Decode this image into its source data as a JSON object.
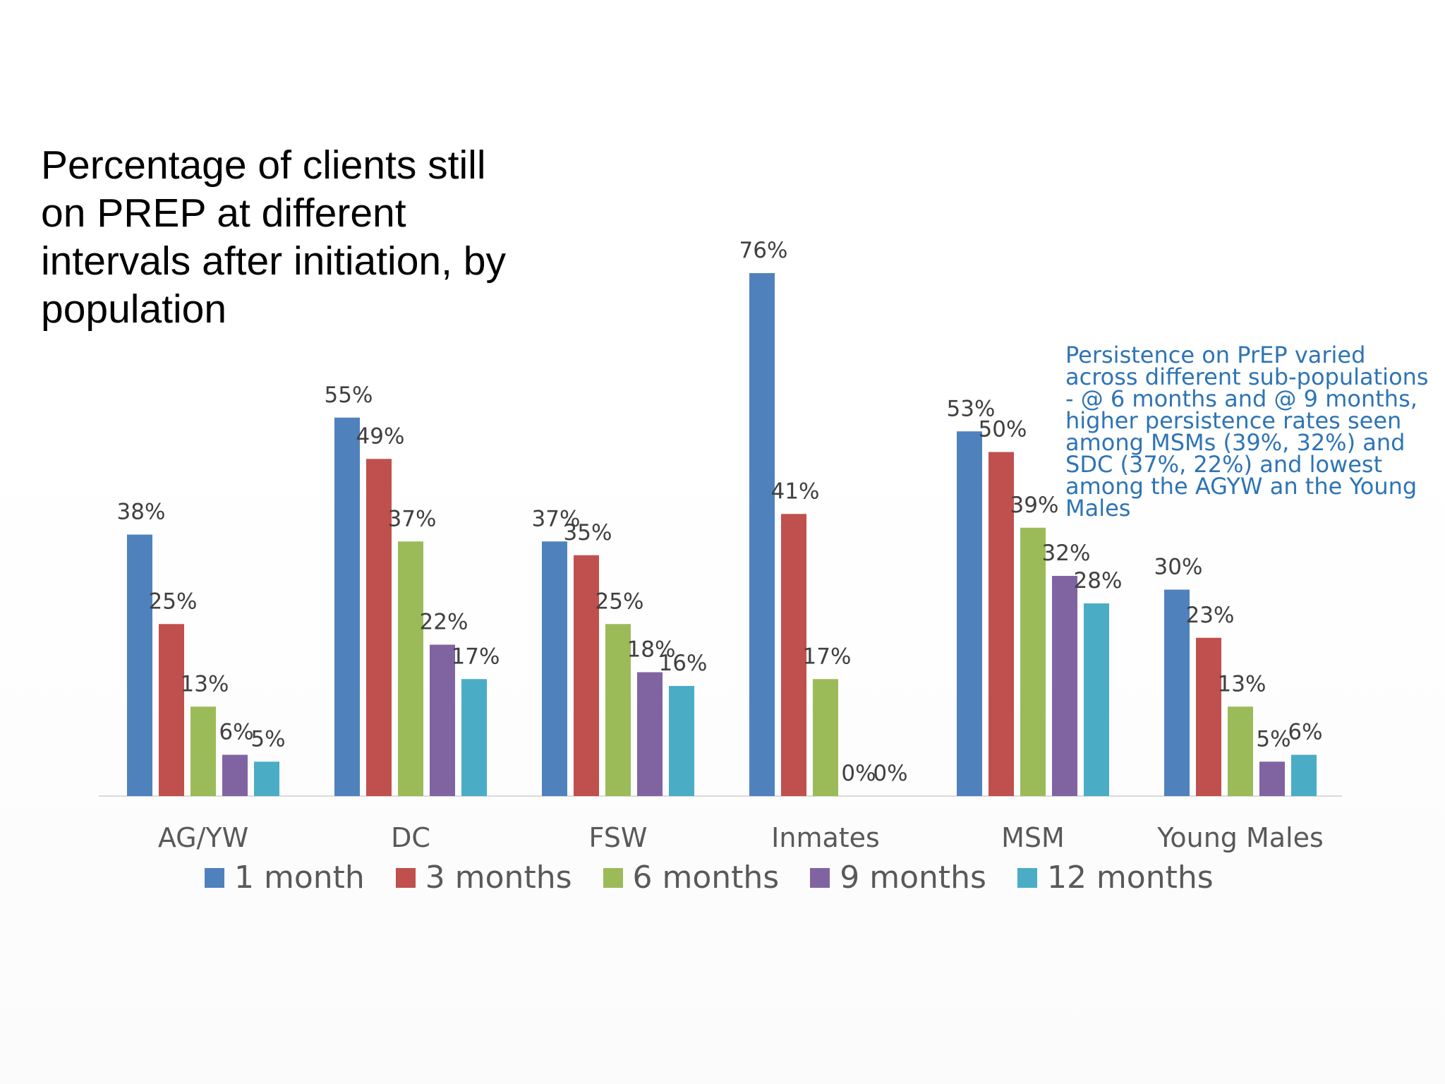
{
  "title": "Percentage of clients still on PREP at different intervals after initiation, by population",
  "note": "Persistence on PrEP varied across different sub-populations - @ 6 months and @ 9 months, higher persistence rates seen among MSMs (39%, 32%) and SDC (37%, 22%) and lowest among the AGYW an the Young Males",
  "colors": {
    "1 month": "#4f81bd",
    "3 months": "#c0504d",
    "6 months": "#9bbb59",
    "9 months": "#8064a2",
    "12 months": "#4bacc6",
    "axis": "#d9d9d9",
    "note": "#2e74b5"
  },
  "chart_data": {
    "type": "bar",
    "categories": [
      "AG/YW",
      "DC",
      "FSW",
      "Inmates",
      "MSM",
      "Young Males"
    ],
    "series": [
      {
        "name": "1 month",
        "values": [
          38,
          55,
          37,
          76,
          53,
          30
        ],
        "labels": [
          "38%",
          "55%",
          "37%",
          "76%",
          "53%",
          "30%"
        ]
      },
      {
        "name": "3 months",
        "values": [
          25,
          49,
          35,
          41,
          50,
          23
        ],
        "labels": [
          "25%",
          "49%",
          "35%",
          "41%",
          "50%",
          "23%"
        ]
      },
      {
        "name": "6 months",
        "values": [
          13,
          37,
          25,
          17,
          39,
          13
        ],
        "labels": [
          "13%",
          "37%",
          "25%",
          "17%",
          "39%",
          "13%"
        ]
      },
      {
        "name": "9 months",
        "values": [
          6,
          22,
          18,
          0,
          32,
          5
        ],
        "labels": [
          "6%",
          "22%",
          "18%",
          "0%",
          "32%",
          "5%"
        ]
      },
      {
        "name": "12 months",
        "values": [
          5,
          17,
          16,
          0,
          28,
          6
        ],
        "labels": [
          "5%",
          "17%",
          "16%",
          "0%",
          "28%",
          "6%"
        ]
      }
    ],
    "ylim": [
      0,
      80
    ],
    "grid": false,
    "legend_position": "bottom"
  }
}
